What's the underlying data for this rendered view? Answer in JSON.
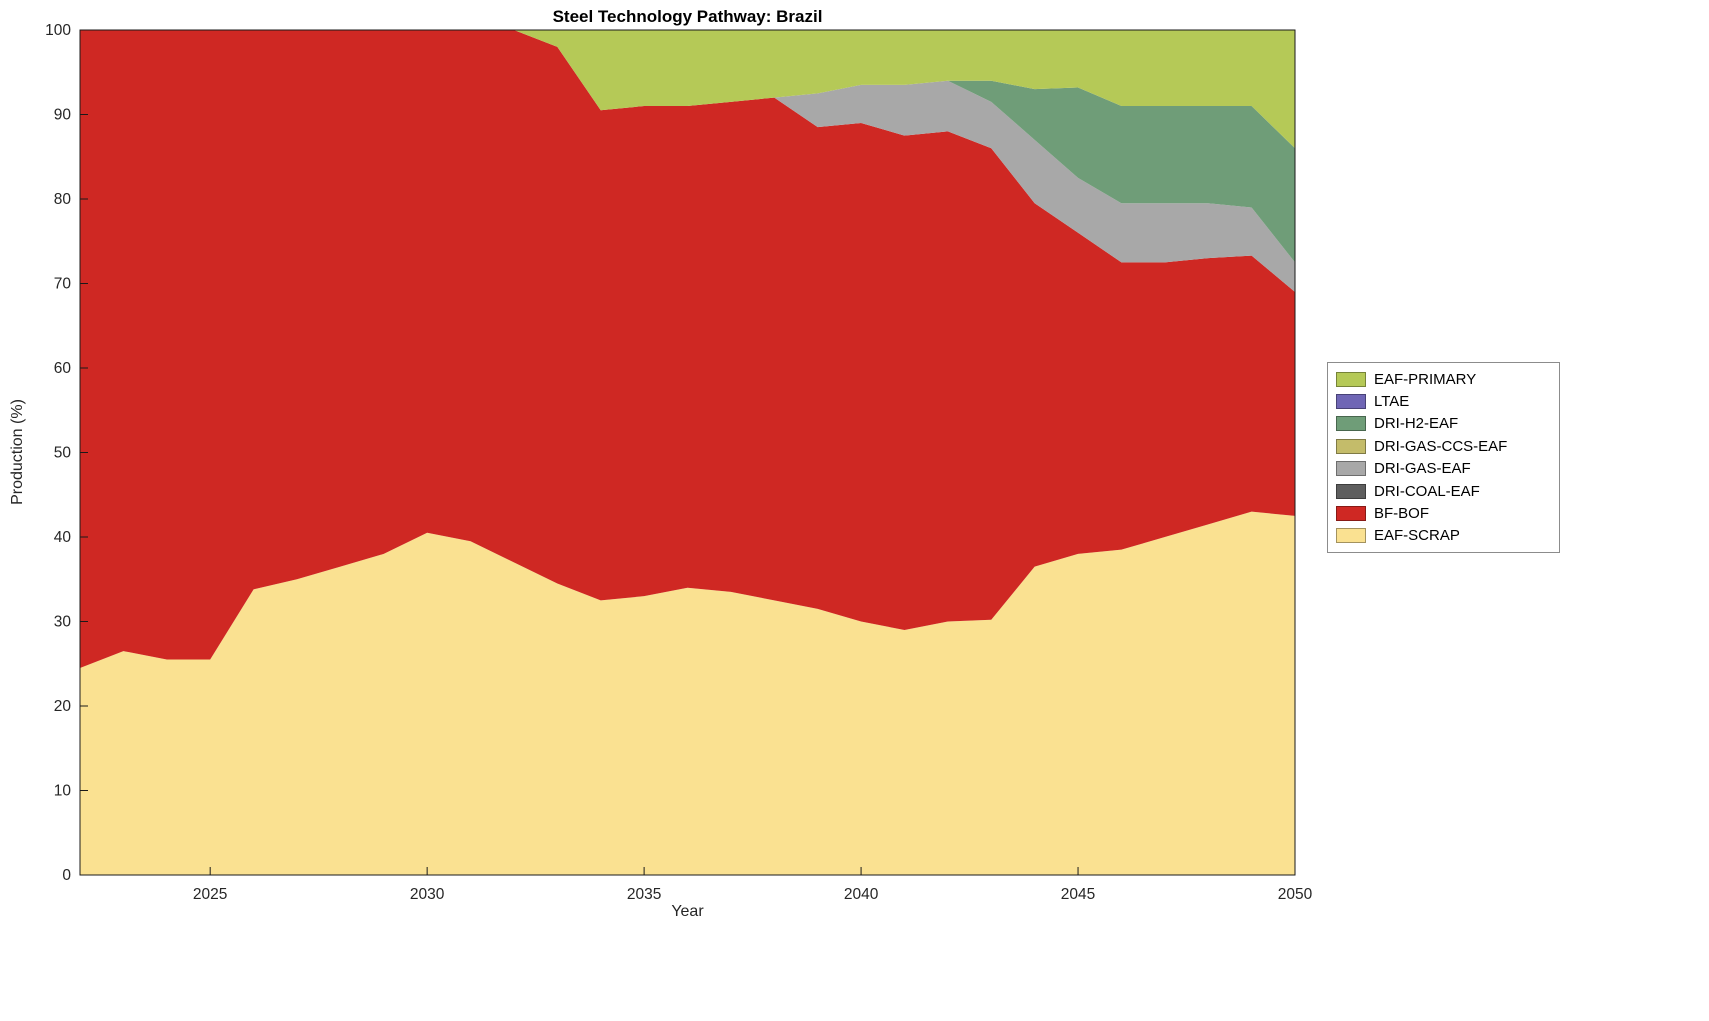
{
  "title": "Steel Technology Pathway: Brazil",
  "chart_data": {
    "type": "area",
    "stacked": true,
    "title": "Steel Technology Pathway: Brazil",
    "xlabel": "Year",
    "ylabel": "Production (%)",
    "xlim": [
      2022,
      2050
    ],
    "ylim": [
      0,
      100
    ],
    "grid": false,
    "x_ticks": [
      "2025",
      "2030",
      "2035",
      "2040",
      "2045",
      "2050"
    ],
    "x_tick_values": [
      2025,
      2030,
      2035,
      2040,
      2045,
      2050
    ],
    "y_ticks": [
      "0",
      "10",
      "20",
      "30",
      "40",
      "50",
      "60",
      "70",
      "80",
      "90",
      "100"
    ],
    "y_tick_values": [
      0,
      10,
      20,
      30,
      40,
      50,
      60,
      70,
      80,
      90,
      100
    ],
    "x": [
      2022,
      2023,
      2024,
      2025,
      2026,
      2027,
      2028,
      2029,
      2030,
      2031,
      2032,
      2033,
      2034,
      2035,
      2036,
      2037,
      2038,
      2039,
      2040,
      2041,
      2042,
      2043,
      2044,
      2045,
      2046,
      2047,
      2048,
      2049,
      2050
    ],
    "series": [
      {
        "name": "EAF-SCRAP",
        "color": "#fae191",
        "values": [
          24.5,
          26.5,
          25.5,
          25.5,
          33.8,
          35,
          36.5,
          38,
          40.5,
          39.5,
          37,
          34.5,
          32.5,
          33,
          34,
          33.5,
          32.5,
          31.5,
          30,
          29,
          30,
          30.2,
          36.5,
          38,
          38.5,
          40,
          41.5,
          43,
          42.5
        ]
      },
      {
        "name": "BF-BOF",
        "color": "#cf2823",
        "values": [
          75.5,
          73.5,
          74.5,
          74.5,
          66.2,
          65,
          63.5,
          62,
          59.5,
          60.5,
          63,
          63.5,
          58,
          58,
          57,
          58,
          59.5,
          57,
          59,
          58.5,
          58,
          55.8,
          43,
          38,
          34,
          32.5,
          31.5,
          30.3,
          26.5
        ]
      },
      {
        "name": "DRI-COAL-EAF",
        "color": "#5e5e5e",
        "values": [
          0,
          0,
          0,
          0,
          0,
          0,
          0,
          0,
          0,
          0,
          0,
          0,
          0,
          0,
          0,
          0,
          0,
          0,
          0,
          0,
          0,
          0,
          0,
          0,
          0,
          0,
          0,
          0,
          0
        ]
      },
      {
        "name": "DRI-GAS-EAF",
        "color": "#a8a8a8",
        "values": [
          0,
          0,
          0,
          0,
          0,
          0,
          0,
          0,
          0,
          0,
          0,
          0,
          0,
          0,
          0,
          0,
          0,
          4,
          4.5,
          6,
          6,
          5.5,
          7.5,
          6.5,
          7,
          7,
          6.5,
          5.7,
          3.5
        ]
      },
      {
        "name": "DRI-GAS-CCS-EAF",
        "color": "#c4bc6a",
        "values": [
          0,
          0,
          0,
          0,
          0,
          0,
          0,
          0,
          0,
          0,
          0,
          0,
          0,
          0,
          0,
          0,
          0,
          0,
          0,
          0,
          0,
          0,
          0,
          0,
          0,
          0,
          0,
          0,
          0
        ]
      },
      {
        "name": "DRI-H2-EAF",
        "color": "#6f9d78",
        "values": [
          0,
          0,
          0,
          0,
          0,
          0,
          0,
          0,
          0,
          0,
          0,
          0,
          0,
          0,
          0,
          0,
          0,
          0,
          0,
          0,
          0,
          2.5,
          6,
          10.7,
          11.5,
          11.5,
          11.5,
          12,
          13.5
        ]
      },
      {
        "name": "LTAE",
        "color": "#6f66b5",
        "values": [
          0,
          0,
          0,
          0,
          0,
          0,
          0,
          0,
          0,
          0,
          0,
          0,
          0,
          0,
          0,
          0,
          0,
          0,
          0,
          0,
          0,
          0,
          0,
          0,
          0,
          0,
          0,
          0,
          0
        ]
      },
      {
        "name": "EAF-PRIMARY",
        "color": "#b5c957",
        "values": [
          0,
          0,
          0,
          0,
          0,
          0,
          0,
          0,
          0,
          0,
          0,
          2,
          9.5,
          9,
          9,
          8.5,
          8,
          7.5,
          6.5,
          6.5,
          6,
          6,
          7,
          6.8,
          9,
          9,
          9,
          9,
          14
        ]
      }
    ],
    "legend": {
      "position": "right",
      "entries": [
        "EAF-PRIMARY",
        "LTAE",
        "DRI-H2-EAF",
        "DRI-GAS-CCS-EAF",
        "DRI-GAS-EAF",
        "DRI-COAL-EAF",
        "BF-BOF",
        "EAF-SCRAP"
      ]
    },
    "axis_color": "#1a1a1a",
    "tick_label_color": "#262626"
  }
}
